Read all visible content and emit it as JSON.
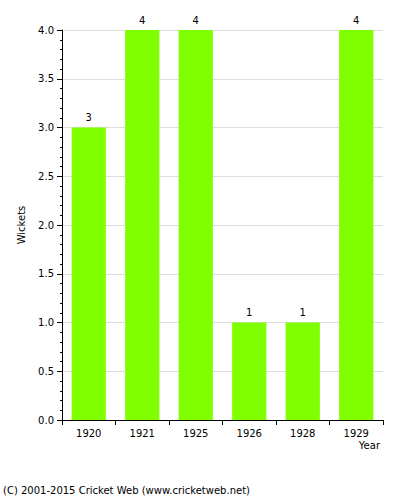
{
  "chart_data": {
    "type": "bar",
    "categories": [
      "1920",
      "1921",
      "1925",
      "1926",
      "1928",
      "1929"
    ],
    "values": [
      3,
      4,
      4,
      1,
      1,
      4
    ],
    "color": "#80ff00",
    "xlabel": "Year",
    "ylabel": "Wickets",
    "footer": "(C) 2001-2015 Cricket Web (www.cricketweb.net)",
    "ylim": [
      0,
      4
    ],
    "yticks": [
      {
        "value": 0,
        "label": "0.0"
      },
      {
        "value": 0.5,
        "label": "0.5"
      },
      {
        "value": 1,
        "label": "1.0"
      },
      {
        "value": 1.5,
        "label": "1.5"
      },
      {
        "value": 2,
        "label": "2.0"
      },
      {
        "value": 2.5,
        "label": "2.5"
      },
      {
        "value": 3,
        "label": "3.0"
      },
      {
        "value": 3.5,
        "label": "3.5"
      },
      {
        "value": 4,
        "label": "4.0"
      }
    ],
    "grid": true,
    "data_labels": true
  }
}
